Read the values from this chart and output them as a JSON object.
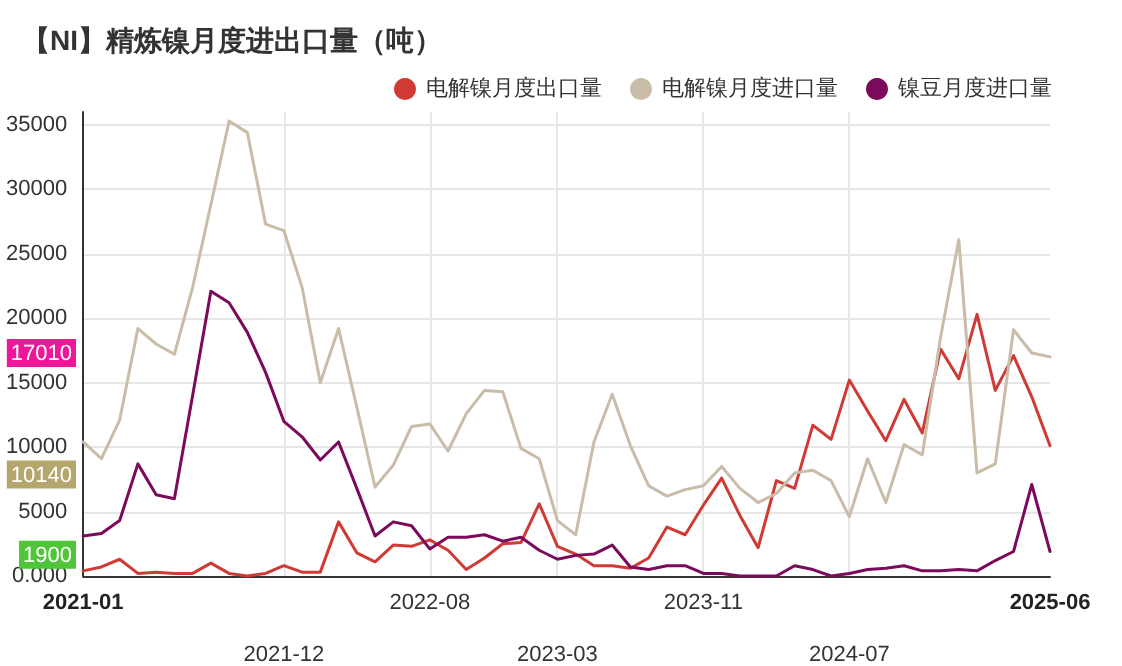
{
  "chart_data": {
    "type": "line",
    "title": "【NI】精炼镍月度进出口量（吨）",
    "categories": [
      "2021-01",
      null,
      null,
      null,
      null,
      null,
      null,
      null,
      null,
      null,
      null,
      "2021-12",
      null,
      null,
      null,
      null,
      null,
      null,
      null,
      "2022-08",
      null,
      null,
      null,
      null,
      null,
      null,
      "2023-03",
      null,
      null,
      null,
      null,
      null,
      null,
      null,
      "2023-11",
      null,
      null,
      null,
      null,
      null,
      null,
      null,
      "2024-07",
      null,
      null,
      null,
      null,
      null,
      null,
      null,
      null,
      null,
      null,
      "2025-06"
    ],
    "series": [
      {
        "name": "电解镍月度出口量",
        "color": "#d03a35",
        "values": [
          400,
          700,
          1300,
          200,
          300,
          200,
          200,
          1000,
          200,
          0,
          200,
          800,
          300,
          300,
          4200,
          1800,
          1100,
          2400,
          2300,
          2800,
          2000,
          500,
          1400,
          2500,
          2600,
          5600,
          2300,
          1700,
          800,
          800,
          600,
          1400,
          3800,
          3200,
          5500,
          7600,
          4700,
          2200,
          7400,
          6800,
          11700,
          10600,
          15200,
          12800,
          10500,
          13700,
          11100,
          17600,
          15300,
          20300,
          14400,
          17100,
          13900,
          10100
        ]
      },
      {
        "name": "电解镍月度进口量",
        "color": "#c9bca8",
        "values": [
          10400,
          9100,
          12100,
          19200,
          18000,
          17200,
          22400,
          28800,
          35300,
          34400,
          27300,
          26800,
          22400,
          15000,
          19200,
          13100,
          6900,
          8600,
          11600,
          11800,
          9700,
          12600,
          14400,
          14300,
          9900,
          9100,
          4300,
          3200,
          10400,
          14100,
          10100,
          7000,
          6200,
          6700,
          7000,
          8500,
          6800,
          5700,
          6400,
          8000,
          8200,
          7400,
          4600,
          9100,
          5700,
          10200,
          9400,
          18500,
          26100,
          8000,
          8700,
          19100,
          17300,
          17000
        ]
      },
      {
        "name": "镍豆月度进口量",
        "color": "#7b0a5c",
        "values": [
          3100,
          3300,
          4300,
          8700,
          6300,
          6000,
          14000,
          22100,
          21200,
          18900,
          15800,
          12000,
          10800,
          9000,
          10400,
          6800,
          3100,
          4200,
          3900,
          2100,
          3000,
          3000,
          3200,
          2700,
          3000,
          2000,
          1300,
          1600,
          1700,
          2400,
          700,
          500,
          800,
          800,
          200,
          200,
          0,
          0,
          0,
          800,
          500,
          0,
          200,
          500,
          600,
          800,
          400,
          400,
          500,
          400,
          1200,
          1900,
          7100,
          1900
        ]
      }
    ],
    "ylim": [
      0,
      36000
    ],
    "yticks": [
      {
        "value": 0,
        "label": "0.000"
      },
      5000,
      10000,
      15000,
      20000,
      25000,
      30000,
      35000
    ],
    "annotations": [
      "17010",
      "10140",
      "1900"
    ],
    "grid": true,
    "legend": "top right",
    "marker": "none",
    "line_style": "solid"
  }
}
